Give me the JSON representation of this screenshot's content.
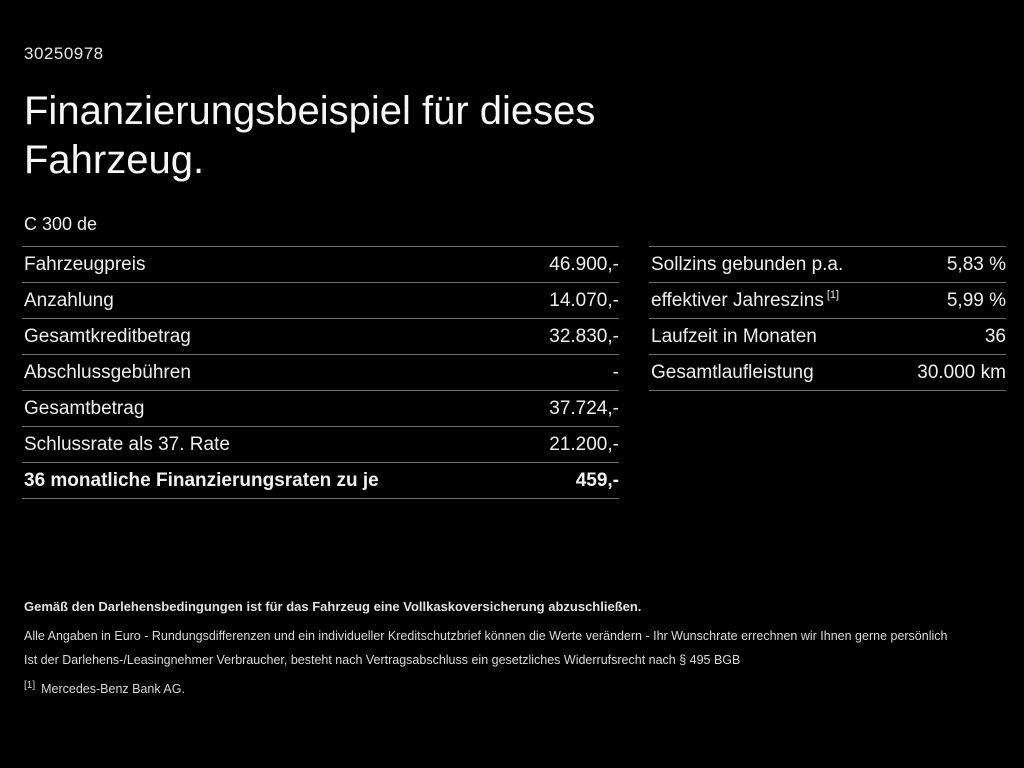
{
  "page": {
    "id_number": "30250978",
    "title_line1": "Finanzierungsbeispiel für dieses",
    "title_line2": "Fahrzeug.",
    "model": "C 300 de"
  },
  "left_table": {
    "rows": [
      {
        "label": "Fahrzeugpreis",
        "value": "46.900,-"
      },
      {
        "label": "Anzahlung",
        "value": "14.070,-"
      },
      {
        "label": "Gesamtkreditbetrag",
        "value": "32.830,-"
      },
      {
        "label": "Abschlussgebühren",
        "value": "-"
      },
      {
        "label": "Gesamtbetrag",
        "value": "37.724,-"
      },
      {
        "label": "Schlussrate als 37. Rate",
        "value": "21.200,-"
      },
      {
        "label": "36 monatliche Finanzierungsraten zu je",
        "value": "459,-"
      }
    ]
  },
  "right_table": {
    "rows": [
      {
        "label": "Sollzins gebunden p.a.",
        "superscript": "",
        "value": "5,83 %"
      },
      {
        "label": "effektiver Jahreszins",
        "superscript": "[1]",
        "value": "5,99 %"
      },
      {
        "label": "Laufzeit in Monaten",
        "superscript": "",
        "value": "36"
      },
      {
        "label": "Gesamtlaufleistung",
        "superscript": "",
        "value": "30.000 km"
      }
    ]
  },
  "footer": {
    "bold_note": "Gemäß den Darlehensbedingungen ist für das Fahrzeug eine Vollkaskoversicherung abzuschließen.",
    "note1": "Alle Angaben in Euro - Rundungsdifferenzen und ein individueller Kreditschutzbrief können die Werte verändern - Ihr Wunschrate errechnen wir Ihnen gerne persönlich",
    "note2": "Ist der Darlehens-/Leasingnehmer Verbraucher, besteht nach Vertragsabschluss ein gesetzliches Widerrufsrecht nach § 495 BGB",
    "footnote_marker": "[1]",
    "footnote_text": "Mercedes-Benz Bank AG."
  },
  "colors": {
    "background": "#000000",
    "text": "#f2f2f2",
    "divider": "#6f6f6f"
  }
}
